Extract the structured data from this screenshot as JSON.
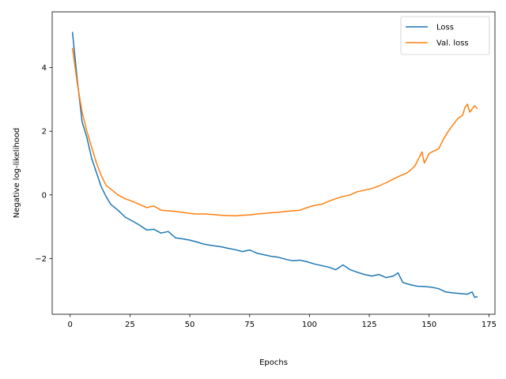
{
  "chart_data": {
    "type": "line",
    "title": "",
    "xlabel": "Epochs",
    "ylabel": "Negative log-likelihood",
    "xlim": [
      -7.5,
      177.5
    ],
    "ylim": [
      -3.75,
      5.75
    ],
    "xticks": [
      0,
      25,
      50,
      75,
      100,
      125,
      150,
      175
    ],
    "yticks": [
      -2,
      0,
      2,
      4
    ],
    "ytick_labels": [
      "−2",
      "0",
      "2",
      "4"
    ],
    "grid": false,
    "legend_position": "top-right",
    "series": [
      {
        "name": "Loss",
        "color": "#1f77b4",
        "points": [
          [
            1,
            5.1
          ],
          [
            3,
            3.6
          ],
          [
            5,
            2.3
          ],
          [
            7,
            1.8
          ],
          [
            9,
            1.15
          ],
          [
            11,
            0.7
          ],
          [
            13,
            0.25
          ],
          [
            15,
            -0.05
          ],
          [
            17,
            -0.3
          ],
          [
            20,
            -0.48
          ],
          [
            23,
            -0.7
          ],
          [
            26,
            -0.82
          ],
          [
            29,
            -0.95
          ],
          [
            32,
            -1.1
          ],
          [
            35,
            -1.08
          ],
          [
            38,
            -1.2
          ],
          [
            41,
            -1.15
          ],
          [
            44,
            -1.35
          ],
          [
            47,
            -1.38
          ],
          [
            50,
            -1.42
          ],
          [
            53,
            -1.48
          ],
          [
            56,
            -1.55
          ],
          [
            60,
            -1.6
          ],
          [
            63,
            -1.63
          ],
          [
            66,
            -1.68
          ],
          [
            69,
            -1.72
          ],
          [
            72,
            -1.78
          ],
          [
            75,
            -1.73
          ],
          [
            78,
            -1.83
          ],
          [
            81,
            -1.88
          ],
          [
            84,
            -1.93
          ],
          [
            87,
            -1.96
          ],
          [
            90,
            -2.02
          ],
          [
            93,
            -2.07
          ],
          [
            96,
            -2.05
          ],
          [
            99,
            -2.1
          ],
          [
            102,
            -2.17
          ],
          [
            105,
            -2.22
          ],
          [
            108,
            -2.27
          ],
          [
            111,
            -2.35
          ],
          [
            114,
            -2.2
          ],
          [
            117,
            -2.35
          ],
          [
            120,
            -2.43
          ],
          [
            123,
            -2.5
          ],
          [
            126,
            -2.55
          ],
          [
            129,
            -2.5
          ],
          [
            132,
            -2.6
          ],
          [
            135,
            -2.55
          ],
          [
            137,
            -2.45
          ],
          [
            139,
            -2.75
          ],
          [
            142,
            -2.82
          ],
          [
            145,
            -2.87
          ],
          [
            148,
            -2.88
          ],
          [
            151,
            -2.9
          ],
          [
            154,
            -2.95
          ],
          [
            157,
            -3.05
          ],
          [
            160,
            -3.08
          ],
          [
            163,
            -3.1
          ],
          [
            166,
            -3.12
          ],
          [
            168,
            -3.05
          ],
          [
            169,
            -3.22
          ],
          [
            170,
            -3.2
          ]
        ]
      },
      {
        "name": "Val. loss",
        "color": "#ff7f0e",
        "points": [
          [
            1,
            4.6
          ],
          [
            3,
            3.5
          ],
          [
            5,
            2.6
          ],
          [
            7,
            2.0
          ],
          [
            9,
            1.5
          ],
          [
            11,
            1.0
          ],
          [
            13,
            0.6
          ],
          [
            15,
            0.3
          ],
          [
            17,
            0.18
          ],
          [
            20,
            0.0
          ],
          [
            23,
            -0.12
          ],
          [
            26,
            -0.2
          ],
          [
            29,
            -0.3
          ],
          [
            32,
            -0.4
          ],
          [
            35,
            -0.35
          ],
          [
            38,
            -0.48
          ],
          [
            41,
            -0.5
          ],
          [
            44,
            -0.52
          ],
          [
            47,
            -0.55
          ],
          [
            50,
            -0.58
          ],
          [
            53,
            -0.6
          ],
          [
            56,
            -0.6
          ],
          [
            60,
            -0.62
          ],
          [
            63,
            -0.64
          ],
          [
            66,
            -0.65
          ],
          [
            69,
            -0.66
          ],
          [
            72,
            -0.64
          ],
          [
            75,
            -0.63
          ],
          [
            78,
            -0.6
          ],
          [
            81,
            -0.58
          ],
          [
            84,
            -0.56
          ],
          [
            87,
            -0.55
          ],
          [
            90,
            -0.52
          ],
          [
            93,
            -0.5
          ],
          [
            96,
            -0.48
          ],
          [
            99,
            -0.4
          ],
          [
            102,
            -0.33
          ],
          [
            105,
            -0.3
          ],
          [
            108,
            -0.2
          ],
          [
            111,
            -0.12
          ],
          [
            114,
            -0.05
          ],
          [
            117,
            0.0
          ],
          [
            120,
            0.1
          ],
          [
            123,
            0.15
          ],
          [
            126,
            0.2
          ],
          [
            129,
            0.28
          ],
          [
            132,
            0.38
          ],
          [
            135,
            0.5
          ],
          [
            138,
            0.6
          ],
          [
            141,
            0.7
          ],
          [
            144,
            0.9
          ],
          [
            147,
            1.35
          ],
          [
            148,
            1.0
          ],
          [
            150,
            1.3
          ],
          [
            152,
            1.38
          ],
          [
            154,
            1.45
          ],
          [
            156,
            1.75
          ],
          [
            158,
            2.0
          ],
          [
            160,
            2.2
          ],
          [
            162,
            2.4
          ],
          [
            164,
            2.5
          ],
          [
            165,
            2.75
          ],
          [
            166,
            2.85
          ],
          [
            167,
            2.6
          ],
          [
            169,
            2.8
          ],
          [
            170,
            2.72
          ]
        ]
      }
    ]
  }
}
